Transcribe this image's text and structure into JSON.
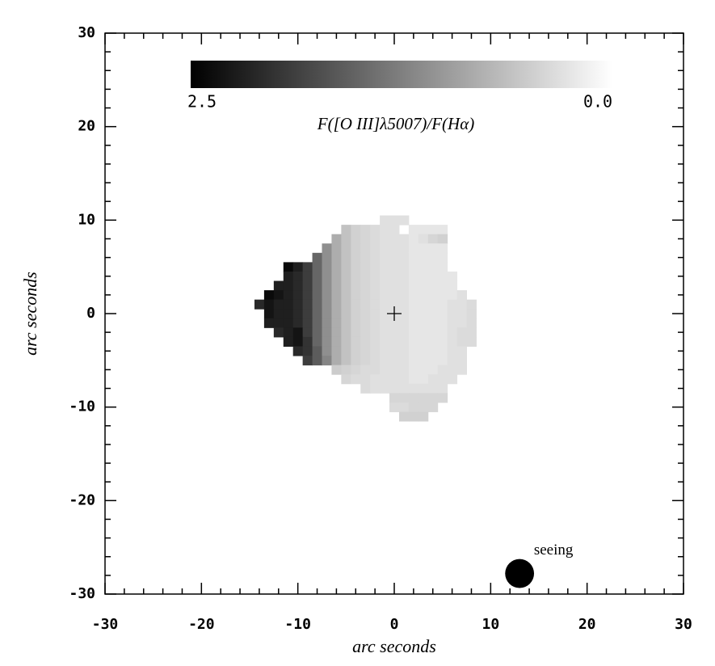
{
  "chart_data": {
    "type": "heatmap",
    "xlabel": "arc seconds",
    "ylabel": "arc seconds",
    "xlim": [
      -30,
      30
    ],
    "ylim": [
      -30,
      30
    ],
    "xticks": [
      -30,
      -20,
      -10,
      0,
      10,
      20,
      30
    ],
    "yticks": [
      -30,
      -20,
      -10,
      0,
      10,
      20,
      30
    ],
    "xminorticks": [
      -28,
      -26,
      -24,
      -22,
      -18,
      -16,
      -14,
      -12,
      -8,
      -6,
      -4,
      -2,
      2,
      4,
      6,
      8,
      12,
      14,
      16,
      18,
      22,
      24,
      26,
      28
    ],
    "yminorticks": [
      -28,
      -26,
      -24,
      -22,
      -18,
      -16,
      -14,
      -12,
      -8,
      -6,
      -4,
      -2,
      2,
      4,
      6,
      8,
      12,
      14,
      16,
      18,
      22,
      24,
      26,
      28
    ],
    "colorbar_label": "F([O III]λ5007)/F(Hα)",
    "clim": [
      2.5,
      0
    ],
    "cticks": [
      2.5,
      {
        "value": 0,
        "label": "0.0"
      }
    ],
    "center_marker": {
      "x": 0,
      "y": 0
    },
    "seeing": {
      "label": "seeing",
      "x": 13,
      "y": -27.8,
      "diameter": 3
    },
    "x": [
      -14,
      -13,
      -12,
      -11,
      -10,
      -9,
      -8,
      -7,
      -6,
      -5,
      -4,
      -3,
      -2,
      -1,
      0,
      1,
      2,
      3,
      4,
      5,
      6,
      7,
      8
    ],
    "y": [
      10,
      9,
      8,
      7,
      6,
      5,
      4,
      3,
      2,
      1,
      0,
      -1,
      -2,
      -3,
      -4,
      -5,
      -6,
      -7,
      -8,
      -9,
      -10,
      -11
    ],
    "z": [
      [
        null,
        null,
        null,
        null,
        null,
        null,
        null,
        null,
        null,
        null,
        null,
        null,
        null,
        0.3,
        0.3,
        0.3,
        null,
        null,
        null,
        null,
        null,
        null,
        null
      ],
      [
        null,
        null,
        null,
        null,
        null,
        null,
        null,
        null,
        null,
        0.6,
        0.45,
        0.4,
        0.35,
        0.3,
        0.3,
        null,
        0.25,
        0.25,
        0.25,
        0.25,
        null,
        null,
        null
      ],
      [
        null,
        null,
        null,
        null,
        null,
        null,
        null,
        null,
        0.8,
        0.6,
        0.45,
        0.4,
        0.35,
        0.3,
        0.3,
        0.3,
        0.25,
        0.3,
        0.4,
        0.45,
        null,
        null,
        null
      ],
      [
        null,
        null,
        null,
        null,
        null,
        null,
        null,
        1.1,
        0.8,
        0.6,
        0.45,
        0.4,
        0.35,
        0.3,
        0.3,
        0.3,
        0.25,
        0.25,
        0.25,
        0.25,
        null,
        null,
        null
      ],
      [
        null,
        null,
        null,
        null,
        null,
        null,
        1.5,
        1.1,
        0.8,
        0.6,
        0.45,
        0.4,
        0.35,
        0.3,
        0.3,
        0.3,
        0.25,
        0.25,
        0.25,
        0.25,
        null,
        null,
        null
      ],
      [
        null,
        null,
        null,
        2.4,
        2.2,
        1.9,
        1.5,
        1.1,
        0.8,
        0.6,
        0.45,
        0.4,
        0.35,
        0.3,
        0.3,
        0.3,
        0.25,
        0.25,
        0.25,
        0.25,
        null,
        null,
        null
      ],
      [
        null,
        null,
        null,
        2.2,
        2.1,
        1.9,
        1.5,
        1.1,
        0.8,
        0.6,
        0.45,
        0.4,
        0.35,
        0.3,
        0.3,
        0.3,
        0.25,
        0.25,
        0.25,
        0.25,
        0.25,
        null,
        null
      ],
      [
        null,
        null,
        2.2,
        2.2,
        2.1,
        1.9,
        1.5,
        1.1,
        0.8,
        0.6,
        0.45,
        0.4,
        0.35,
        0.3,
        0.3,
        0.3,
        0.25,
        0.25,
        0.25,
        0.25,
        0.25,
        null,
        null
      ],
      [
        null,
        2.4,
        2.3,
        2.2,
        2.1,
        1.9,
        1.5,
        1.1,
        0.8,
        0.6,
        0.45,
        0.4,
        0.35,
        0.3,
        0.3,
        0.3,
        0.25,
        0.25,
        0.25,
        0.25,
        0.25,
        0.3,
        null
      ],
      [
        2.1,
        2.3,
        2.2,
        2.2,
        2.1,
        1.9,
        1.5,
        1.1,
        0.8,
        0.6,
        0.45,
        0.4,
        0.35,
        0.3,
        0.3,
        0.3,
        0.25,
        0.25,
        0.25,
        0.25,
        0.3,
        0.3,
        0.35
      ],
      [
        null,
        2.3,
        2.2,
        2.2,
        2.1,
        1.9,
        1.5,
        1.1,
        0.8,
        0.6,
        0.45,
        0.4,
        0.35,
        0.3,
        0.3,
        0.3,
        0.25,
        0.25,
        0.25,
        0.25,
        0.3,
        0.3,
        0.35
      ],
      [
        null,
        2.2,
        2.2,
        2.2,
        2.1,
        1.9,
        1.5,
        1.1,
        0.8,
        0.6,
        0.45,
        0.4,
        0.35,
        0.3,
        0.3,
        0.3,
        0.25,
        0.25,
        0.25,
        0.25,
        0.3,
        0.3,
        0.35
      ],
      [
        null,
        null,
        2.1,
        2.2,
        2.3,
        1.9,
        1.5,
        1.1,
        0.8,
        0.6,
        0.45,
        0.4,
        0.35,
        0.3,
        0.3,
        0.3,
        0.25,
        0.25,
        0.25,
        0.25,
        0.3,
        0.35,
        0.35
      ],
      [
        null,
        null,
        null,
        2.2,
        2.3,
        2.0,
        1.5,
        1.1,
        0.8,
        0.6,
        0.45,
        0.4,
        0.35,
        0.3,
        0.3,
        0.3,
        0.25,
        0.25,
        0.25,
        0.25,
        0.3,
        0.35,
        0.35
      ],
      [
        null,
        null,
        null,
        null,
        2.1,
        2.0,
        1.6,
        1.1,
        0.8,
        0.6,
        0.45,
        0.4,
        0.35,
        0.3,
        0.3,
        0.3,
        0.25,
        0.25,
        0.25,
        0.25,
        0.3,
        0.3,
        null
      ],
      [
        null,
        null,
        null,
        null,
        null,
        1.9,
        1.6,
        1.2,
        0.8,
        0.6,
        0.45,
        0.4,
        0.35,
        0.3,
        0.3,
        0.3,
        0.25,
        0.25,
        0.25,
        0.25,
        0.3,
        0.3,
        null
      ],
      [
        null,
        null,
        null,
        null,
        null,
        null,
        null,
        null,
        0.5,
        0.45,
        0.4,
        0.35,
        0.35,
        0.3,
        0.3,
        0.3,
        0.25,
        0.25,
        0.25,
        0.3,
        0.3,
        0.3,
        null
      ],
      [
        null,
        null,
        null,
        null,
        null,
        null,
        null,
        null,
        null,
        0.4,
        0.35,
        0.35,
        0.3,
        0.3,
        0.3,
        0.3,
        0.25,
        0.25,
        0.3,
        0.3,
        0.3,
        null,
        null
      ],
      [
        null,
        null,
        null,
        null,
        null,
        null,
        null,
        null,
        null,
        null,
        null,
        0.35,
        0.3,
        0.3,
        0.3,
        0.3,
        0.3,
        0.3,
        0.3,
        0.3,
        null,
        null,
        null
      ],
      [
        null,
        null,
        null,
        null,
        null,
        null,
        null,
        null,
        null,
        null,
        null,
        null,
        null,
        null,
        0.4,
        0.4,
        0.4,
        0.4,
        0.4,
        0.4,
        null,
        null,
        null
      ],
      [
        null,
        null,
        null,
        null,
        null,
        null,
        null,
        null,
        null,
        null,
        null,
        null,
        null,
        null,
        0.35,
        0.35,
        0.4,
        0.4,
        0.4,
        null,
        null,
        null,
        null
      ],
      [
        null,
        null,
        null,
        null,
        null,
        null,
        null,
        null,
        null,
        null,
        null,
        null,
        null,
        null,
        null,
        0.45,
        0.45,
        0.45,
        null,
        null,
        null,
        null,
        null
      ]
    ]
  }
}
